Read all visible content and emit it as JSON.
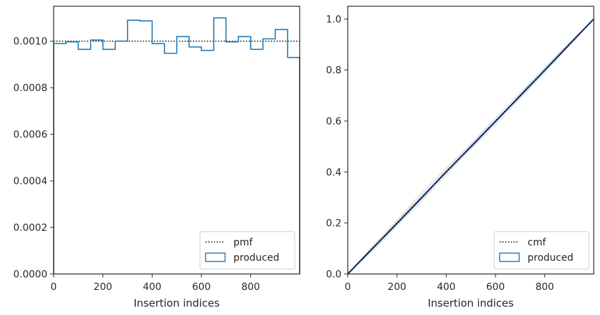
{
  "chart_data": [
    {
      "type": "histogram",
      "xlabel": "Insertion indices",
      "ylabel": "",
      "xlim": [
        0,
        999
      ],
      "ylim": [
        0,
        0.00115
      ],
      "xticks": [
        0,
        200,
        400,
        600,
        800
      ],
      "xtick_labels": [
        "0",
        "200",
        "400",
        "600",
        "800"
      ],
      "yticks": [
        0,
        0.0002,
        0.0004,
        0.0006,
        0.0008,
        0.001
      ],
      "ytick_labels": [
        "0.0000",
        "0.0002",
        "0.0004",
        "0.0006",
        "0.0008",
        "0.0010"
      ],
      "grid": false,
      "legend": {
        "placement": "lower-right",
        "entries": [
          {
            "label": "pmf",
            "style": "dotted-line",
            "color": "#000000"
          },
          {
            "label": "produced",
            "style": "step-outline",
            "color": "#1f77b4"
          }
        ]
      },
      "reference_line": {
        "name": "pmf",
        "value": 0.001
      },
      "bin_edges": [
        0,
        50,
        100,
        150,
        200,
        250,
        300,
        350,
        400,
        450,
        500,
        550,
        600,
        650,
        700,
        750,
        800,
        850,
        900,
        950,
        999
      ],
      "values": [
        0.00099,
        0.000997,
        0.000965,
        0.001005,
        0.000965,
        0.001,
        0.00109,
        0.001087,
        0.00099,
        0.000948,
        0.00102,
        0.000975,
        0.00096,
        0.0011,
        0.000997,
        0.00102,
        0.000965,
        0.00101,
        0.00105,
        0.00093
      ]
    },
    {
      "type": "line",
      "xlabel": "Insertion indices",
      "ylabel": "",
      "xlim": [
        0,
        999
      ],
      "ylim": [
        0,
        1.05
      ],
      "xticks": [
        0,
        200,
        400,
        600,
        800
      ],
      "xtick_labels": [
        "0",
        "200",
        "400",
        "600",
        "800"
      ],
      "yticks": [
        0,
        0.2,
        0.4,
        0.6,
        0.8,
        1.0
      ],
      "ytick_labels": [
        "0.0",
        "0.2",
        "0.4",
        "0.6",
        "0.8",
        "1.0"
      ],
      "grid": false,
      "legend": {
        "placement": "lower-right",
        "entries": [
          {
            "label": "cmf",
            "style": "dotted-line",
            "color": "#000000"
          },
          {
            "label": "produced",
            "style": "step-outline",
            "color": "#1f77b4"
          }
        ]
      },
      "cmf_line": {
        "x": [
          0,
          999
        ],
        "y": [
          0,
          1.0
        ]
      },
      "produced": {
        "x": [
          0,
          100,
          200,
          300,
          400,
          500,
          600,
          700,
          800,
          900,
          999
        ],
        "y": [
          0,
          0.0995,
          0.198,
          0.2985,
          0.4005,
          0.4985,
          0.5975,
          0.6985,
          0.7985,
          0.9002,
          1.0
        ]
      },
      "background_curves_color": "#d9d9d9",
      "background_curves": [
        {
          "x": [
            0,
            100,
            200,
            300,
            400,
            500,
            600,
            700,
            800,
            900,
            999
          ],
          "y": [
            0,
            0.108,
            0.21,
            0.318,
            0.415,
            0.51,
            0.612,
            0.712,
            0.808,
            0.905,
            1.0
          ]
        },
        {
          "x": [
            0,
            100,
            200,
            300,
            400,
            500,
            600,
            700,
            800,
            900,
            999
          ],
          "y": [
            0,
            0.09,
            0.188,
            0.285,
            0.392,
            0.49,
            0.585,
            0.688,
            0.79,
            0.895,
            1.0
          ]
        },
        {
          "x": [
            0,
            100,
            200,
            300,
            400,
            500,
            600,
            700,
            800,
            900,
            999
          ],
          "y": [
            0,
            0.104,
            0.2,
            0.305,
            0.41,
            0.508,
            0.605,
            0.7,
            0.802,
            0.902,
            1.0
          ]
        },
        {
          "x": [
            0,
            100,
            200,
            300,
            400,
            500,
            600,
            700,
            800,
            900,
            999
          ],
          "y": [
            0,
            0.094,
            0.195,
            0.292,
            0.388,
            0.492,
            0.598,
            0.705,
            0.81,
            0.908,
            1.0
          ]
        },
        {
          "x": [
            0,
            100,
            200,
            300,
            400,
            500,
            600,
            700,
            800,
            900,
            999
          ],
          "y": [
            0,
            0.1,
            0.206,
            0.31,
            0.405,
            0.502,
            0.6,
            0.693,
            0.795,
            0.898,
            1.0
          ]
        }
      ]
    }
  ]
}
